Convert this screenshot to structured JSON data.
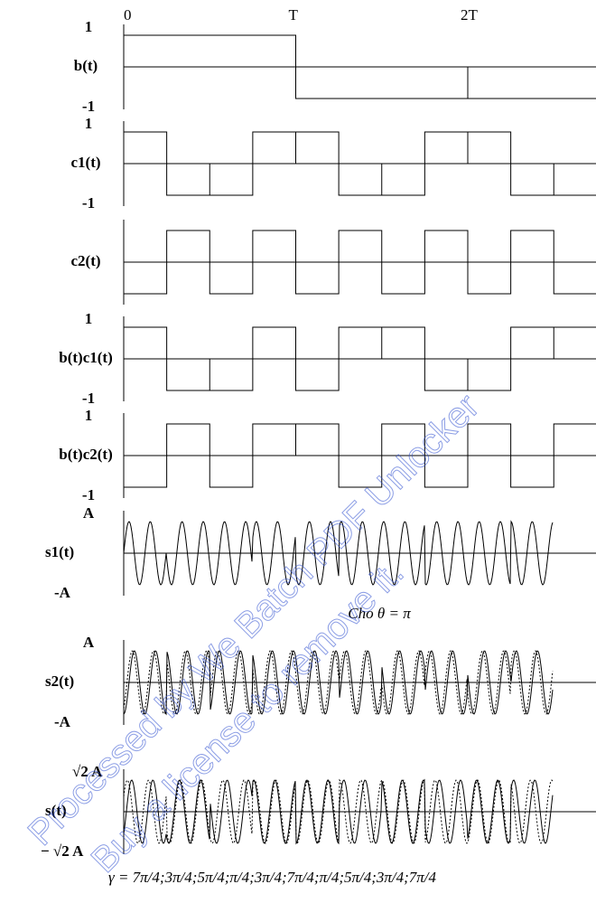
{
  "time_labels": [
    "0",
    "T",
    "2T"
  ],
  "panels": [
    {
      "top": "1",
      "label": "b(t)",
      "bottom": "-1"
    },
    {
      "top": "1",
      "label": "c1(t)",
      "bottom": "-1"
    },
    {
      "label": "c2(t)"
    },
    {
      "top": "1",
      "label": "b(t)c1(t)",
      "bottom": "-1"
    },
    {
      "top": "1",
      "label": "b(t)c2(t)",
      "bottom": "-1"
    },
    {
      "top": "A",
      "label": "s1(t)",
      "bottom": "-A"
    },
    {
      "top": "A",
      "label": "s2(t)",
      "bottom": "-A"
    },
    {
      "top": "√2 A",
      "label": "s(t)",
      "bottom": "− √2 A"
    }
  ],
  "note": "Cho θ = π",
  "phase_sequence": "γ = 7π/4;3π/4;5π/4;π/4;3π/4;7π/4;π/4;5π/4;3π/4;7π/4",
  "watermark": [
    "Processed by We Batch PDF Unlocker",
    "Buy a license to remove it."
  ]
}
